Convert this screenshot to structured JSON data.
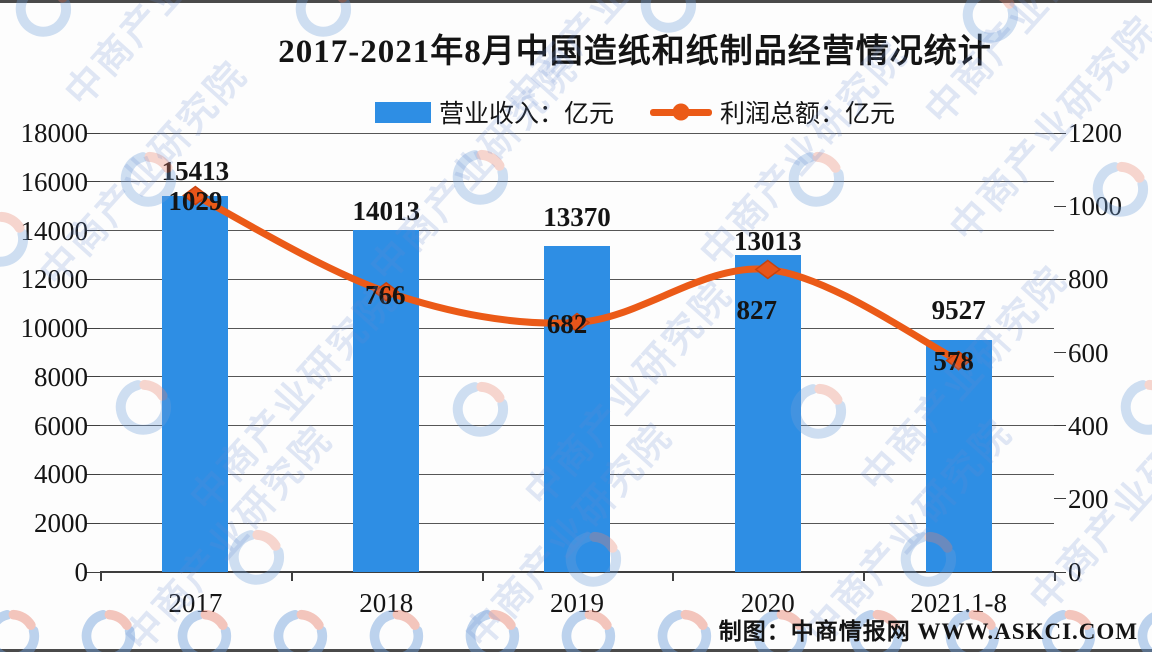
{
  "page": {
    "background": "#FDFDFD"
  },
  "chart_data": {
    "type": "bar",
    "title": "2017-2021年8月中国造纸和纸制品经营情况统计",
    "categories": [
      "2017",
      "2018",
      "2019",
      "2020",
      "2021.1-8"
    ],
    "series": [
      {
        "name": "营业收入：亿元",
        "type": "bar",
        "axis": "left",
        "color": "#2E8EE4",
        "values": [
          15413,
          14013,
          13370,
          13013,
          9527
        ]
      },
      {
        "name": "利润总额：亿元",
        "type": "line",
        "axis": "right",
        "color": "#EB5A17",
        "marker_color": "#E8551A",
        "marker_edge": "#C8430E",
        "values": [
          1029,
          766,
          682,
          827,
          578
        ]
      }
    ],
    "left_axis": {
      "min": 0,
      "max": 18000,
      "step": 2000,
      "tick_labels": [
        "18000",
        "16000",
        "14000",
        "12000",
        "10000",
        "8000",
        "6000",
        "4000",
        "2000",
        "0"
      ]
    },
    "right_axis": {
      "min": 0,
      "max": 1200,
      "step": 200,
      "tick_labels": [
        "1200",
        "1000",
        "800",
        "600",
        "400",
        "200",
        "0"
      ]
    },
    "grid": true,
    "legend_position": "top"
  },
  "watermark": {
    "text": "中商产业研究院",
    "logo_blue": "#6F9FDA",
    "logo_red": "#E8826F"
  },
  "credit": "制图：中商情报网 WWW.ASKCI.COM"
}
